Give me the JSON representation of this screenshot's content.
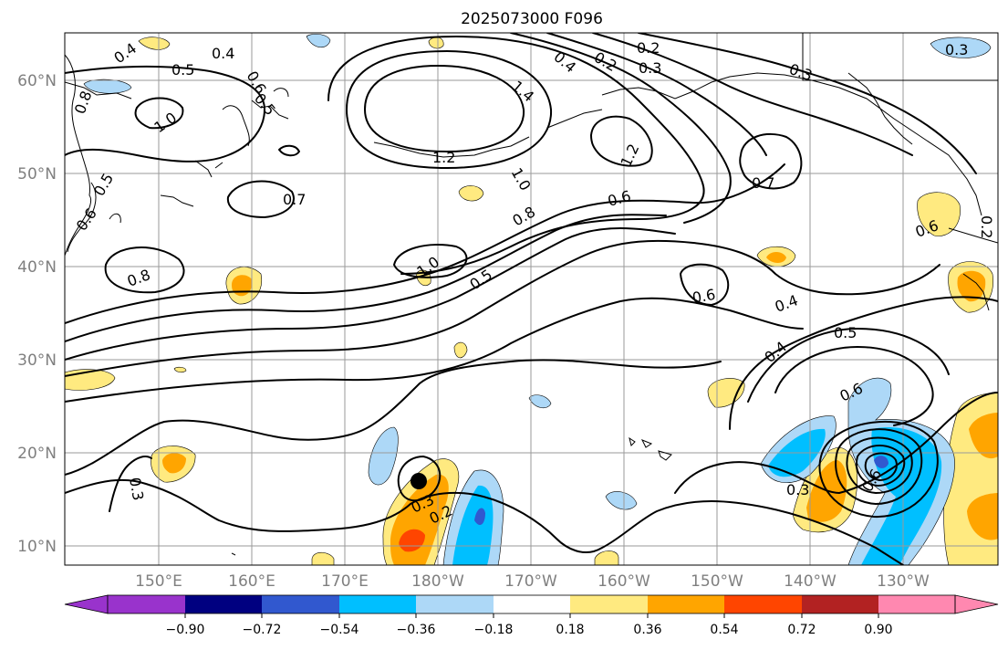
{
  "map": {
    "title": "2025073000 F096",
    "lat_labels": [
      "60°N",
      "50°N",
      "40°N",
      "30°N",
      "20°N",
      "10°N"
    ],
    "lon_labels": [
      "150°E",
      "160°E",
      "170°E",
      "180°W",
      "170°W",
      "160°W",
      "150°W",
      "140°W",
      "130°W"
    ],
    "contour_labels": [
      "0.4",
      "0.4",
      "0.5",
      "0.8",
      "0.6",
      "0.5",
      "1.0",
      "0.5",
      "0.6",
      "0.7",
      "0.8",
      "1.0",
      "0.5",
      "1.2",
      "1.0",
      "0.8",
      "0.6",
      "1.4",
      "1.2",
      "0.4",
      "0.2",
      "0.3",
      "0.3",
      "0.2",
      "0.7",
      "0.6",
      "0.2",
      "0.6",
      "0.4",
      "0.4",
      "0.5",
      "0.6",
      "0.3",
      "0.3",
      "0.2",
      "0.3",
      "0.6",
      "0.3"
    ],
    "colors": {
      "purple": "#9933cc",
      "navy": "#000080",
      "blue": "#3158cf",
      "cyan": "#00bfff",
      "lightblue": "#add8f7",
      "white": "#ffffff",
      "yellow": "#ffea80",
      "orange": "#ffa500",
      "redorange": "#ff4500",
      "darkred": "#b22222",
      "pink": "#ff88b0"
    },
    "colorbar": {
      "levels": [
        "−0.90",
        "−0.72",
        "−0.54",
        "−0.36",
        "−0.18",
        "0.18",
        "0.36",
        "0.54",
        "0.72",
        "0.90"
      ],
      "extend": "both"
    },
    "marker": "storm-center-dot"
  }
}
